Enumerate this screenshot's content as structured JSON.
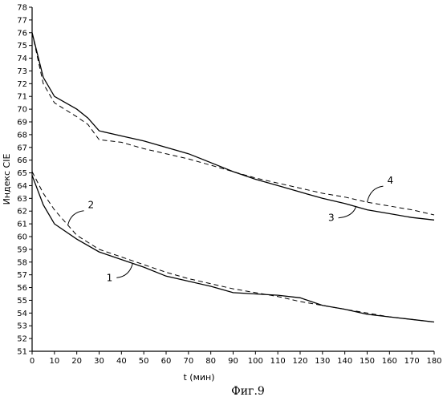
{
  "chart_data": {
    "type": "line",
    "ylabel": "Индекс CIE",
    "xlabel": "t (мин)",
    "caption": "Фиг.9",
    "xlim": [
      0,
      180
    ],
    "ylim": [
      51,
      78
    ],
    "x_ticks": [
      0,
      10,
      20,
      30,
      40,
      50,
      60,
      70,
      80,
      90,
      100,
      110,
      120,
      130,
      140,
      150,
      160,
      170,
      180
    ],
    "y_ticks": [
      51,
      52,
      53,
      54,
      55,
      56,
      57,
      58,
      59,
      60,
      61,
      62,
      63,
      64,
      65,
      66,
      67,
      68,
      69,
      70,
      71,
      72,
      73,
      74,
      75,
      76,
      77,
      78
    ],
    "grid": false,
    "series": [
      {
        "name": "1",
        "style": "solid",
        "points": [
          [
            0,
            64.8
          ],
          [
            5,
            62.5
          ],
          [
            10,
            61.0
          ],
          [
            20,
            59.8
          ],
          [
            30,
            58.8
          ],
          [
            40,
            58.2
          ],
          [
            50,
            57.6
          ],
          [
            60,
            56.9
          ],
          [
            70,
            56.5
          ],
          [
            80,
            56.1
          ],
          [
            90,
            55.6
          ],
          [
            100,
            55.5
          ],
          [
            110,
            55.4
          ],
          [
            120,
            55.2
          ],
          [
            130,
            54.6
          ],
          [
            140,
            54.3
          ],
          [
            150,
            53.9
          ],
          [
            160,
            53.7
          ],
          [
            170,
            53.5
          ],
          [
            180,
            53.3
          ]
        ]
      },
      {
        "name": "2",
        "style": "dashed",
        "points": [
          [
            0,
            65.1
          ],
          [
            5,
            63.4
          ],
          [
            10,
            62.1
          ],
          [
            20,
            60.1
          ],
          [
            30,
            59.0
          ],
          [
            40,
            58.4
          ],
          [
            50,
            57.8
          ],
          [
            60,
            57.2
          ],
          [
            70,
            56.7
          ],
          [
            80,
            56.3
          ],
          [
            90,
            55.9
          ],
          [
            100,
            55.6
          ],
          [
            110,
            55.3
          ],
          [
            120,
            54.9
          ],
          [
            130,
            54.6
          ],
          [
            140,
            54.3
          ],
          [
            150,
            54.0
          ],
          [
            160,
            53.7
          ],
          [
            170,
            53.5
          ],
          [
            180,
            53.3
          ]
        ]
      },
      {
        "name": "3",
        "style": "solid",
        "points": [
          [
            0,
            76.0
          ],
          [
            5,
            72.5
          ],
          [
            10,
            71.0
          ],
          [
            20,
            70.0
          ],
          [
            25,
            69.3
          ],
          [
            30,
            68.3
          ],
          [
            40,
            67.9
          ],
          [
            50,
            67.5
          ],
          [
            60,
            67.0
          ],
          [
            70,
            66.5
          ],
          [
            80,
            65.8
          ],
          [
            90,
            65.1
          ],
          [
            100,
            64.5
          ],
          [
            110,
            64.0
          ],
          [
            120,
            63.5
          ],
          [
            130,
            63.0
          ],
          [
            140,
            62.6
          ],
          [
            150,
            62.1
          ],
          [
            160,
            61.8
          ],
          [
            170,
            61.5
          ],
          [
            180,
            61.3
          ]
        ]
      },
      {
        "name": "4",
        "style": "dashed",
        "points": [
          [
            0,
            76.0
          ],
          [
            5,
            72.0
          ],
          [
            10,
            70.5
          ],
          [
            20,
            69.4
          ],
          [
            25,
            68.8
          ],
          [
            30,
            67.6
          ],
          [
            40,
            67.4
          ],
          [
            50,
            66.9
          ],
          [
            60,
            66.5
          ],
          [
            70,
            66.1
          ],
          [
            80,
            65.6
          ],
          [
            90,
            65.1
          ],
          [
            100,
            64.6
          ],
          [
            110,
            64.2
          ],
          [
            120,
            63.8
          ],
          [
            130,
            63.4
          ],
          [
            140,
            63.1
          ],
          [
            150,
            62.7
          ],
          [
            160,
            62.4
          ],
          [
            170,
            62.1
          ],
          [
            180,
            61.7
          ]
        ]
      }
    ],
    "annotations": [
      {
        "label": "1",
        "series": "1",
        "at_x": 45
      },
      {
        "label": "2",
        "series": "2",
        "at_x": 16
      },
      {
        "label": "3",
        "series": "3",
        "at_x": 145
      },
      {
        "label": "4",
        "series": "4",
        "at_x": 150
      }
    ]
  }
}
